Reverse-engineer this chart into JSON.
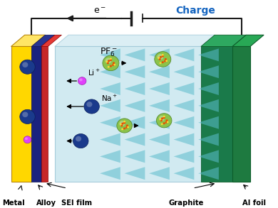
{
  "fig_bg": "#ffffff",
  "electrolyte_color": "#cce8f0",
  "electrolyte_edge": "#a0c8d8",
  "metal_color": "#FFD700",
  "metal_top_color": "#FFE566",
  "alloy_color": "#1a237e",
  "sei_color": "#c62828",
  "graphite_bg": "#1a7a4a",
  "graphite_front": "#1e8a50",
  "graphite_top": "#2ea860",
  "alfoil_color": "#1e7a40",
  "alfoil_top": "#28a855",
  "chevron_color": "#5bbccc",
  "wire_color": "#1a1a1a",
  "title_color": "#1565C0",
  "ion_blue": "#1a3a8c",
  "ion_pink": "#e040fb",
  "pf6_green": "#8bc34a",
  "pf6_yellow_dot": "#ffeb3b",
  "pf6_orange_dot": "#ff9800",
  "labels": {
    "metal": "Metal",
    "alloy": "Alloy",
    "sei": "SEI film",
    "graphite": "Graphite",
    "alfoil": "Al foil",
    "charge": "Charge",
    "electron": "e",
    "pf6_main": "PF",
    "pf6_sub": "6",
    "pf6_sup": "-",
    "li": "Li",
    "li_sup": "+",
    "na": "Na",
    "na_sup": "+"
  }
}
